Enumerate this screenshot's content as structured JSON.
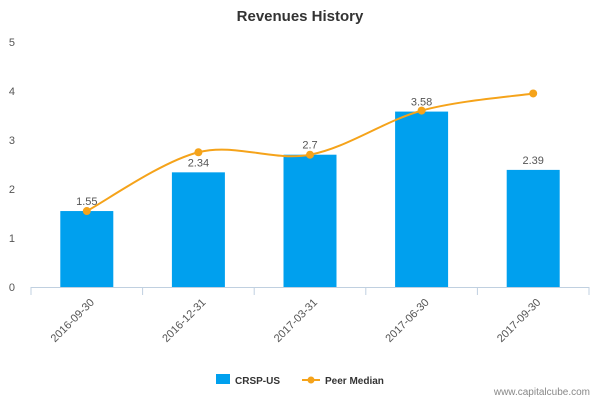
{
  "chart_data": {
    "type": "bar",
    "title": "Revenues History",
    "categories": [
      "2016-09-30",
      "2016-12-31",
      "2017-03-31",
      "2017-06-30",
      "2017-09-30"
    ],
    "series": [
      {
        "name": "CRSP-US",
        "type": "bar",
        "values": [
          1.55,
          2.34,
          2.7,
          3.58,
          2.39
        ],
        "color": "#00a0ee"
      },
      {
        "name": "Peer Median",
        "type": "line",
        "values": [
          1.55,
          2.75,
          2.7,
          3.6,
          3.95
        ],
        "color": "#f5a31a"
      }
    ],
    "data_labels": [
      "1.55",
      "2.34",
      "2.7",
      "3.58",
      "2.39"
    ],
    "y_ticks": [
      "0",
      "1",
      "2",
      "3",
      "4",
      "5"
    ],
    "ylim": [
      0,
      5
    ],
    "xlabel": "",
    "ylabel": "",
    "legend_position": "bottom-center",
    "grid": false
  },
  "credit": "www.capitalcube.com"
}
